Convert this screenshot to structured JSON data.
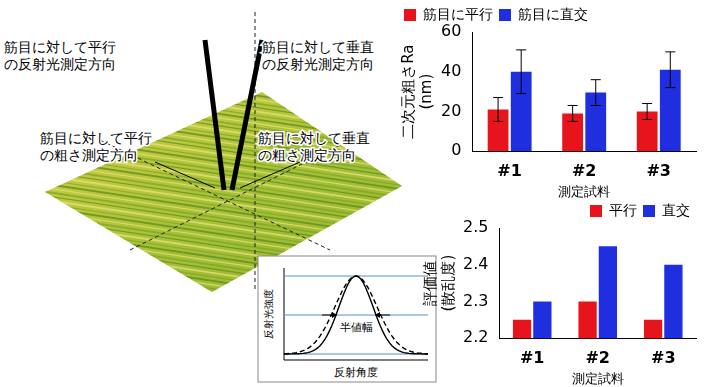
{
  "chart_data": [
    {
      "type": "bar",
      "y_label": [
        "二次元粗さRa",
        "(nm)"
      ],
      "x_label": "測定試料",
      "categories": [
        "#1",
        "#2",
        "#3"
      ],
      "series": [
        {
          "name": "筋目に平行",
          "color": "#e8141b",
          "values": [
            21,
            19,
            20
          ],
          "errors": [
            6,
            4,
            4
          ]
        },
        {
          "name": "筋目に直交",
          "color": "#1f2fe0",
          "values": [
            40,
            29.5,
            41
          ],
          "errors": [
            11,
            6.5,
            9
          ]
        }
      ],
      "ylim": [
        0,
        60
      ],
      "yticks": [
        0,
        20,
        40,
        60
      ],
      "grid": false,
      "legend": "top-left"
    },
    {
      "type": "bar",
      "y_label": [
        "評価値",
        "(散乱度)"
      ],
      "x_label": "測定試料",
      "categories": [
        "#1",
        "#2",
        "#3"
      ],
      "series": [
        {
          "name": "平行",
          "color": "#e8141b",
          "values": [
            2.25,
            2.3,
            2.25
          ]
        },
        {
          "name": "直交",
          "color": "#1f2fe0",
          "values": [
            2.3,
            2.45,
            2.4
          ]
        }
      ],
      "ylim": [
        2.2,
        2.5
      ],
      "yticks": [
        2.2,
        2.3,
        2.4,
        2.5
      ],
      "grid": false,
      "legend": "top-right"
    }
  ],
  "illustration": {
    "annotations": [
      [
        "筋目に対して平行",
        "の反射光測定方向"
      ],
      [
        "筋目に対して垂直",
        "の反射光測定方向"
      ],
      [
        "筋目に対して平行",
        "の粗さ測定方向"
      ],
      [
        "筋目に対して垂直",
        "の粗さ測定方向"
      ]
    ],
    "inset": {
      "y_label": "反射光強度",
      "x_label": "反射角度",
      "width_label": "半値幅"
    }
  }
}
